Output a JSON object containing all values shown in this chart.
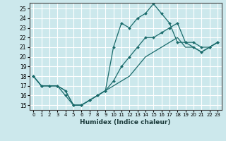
{
  "xlabel": "Humidex (Indice chaleur)",
  "background_color": "#cce8ec",
  "grid_color": "#ffffff",
  "line_color": "#1a6b6b",
  "xlim": [
    -0.5,
    23.5
  ],
  "ylim": [
    14.5,
    25.6
  ],
  "yticks": [
    15,
    16,
    17,
    18,
    19,
    20,
    21,
    22,
    23,
    24,
    25
  ],
  "xticks": [
    0,
    1,
    2,
    3,
    4,
    5,
    6,
    7,
    8,
    9,
    10,
    11,
    12,
    13,
    14,
    15,
    16,
    17,
    18,
    19,
    20,
    21,
    22,
    23
  ],
  "series": [
    {
      "x": [
        0,
        1,
        2,
        3,
        4,
        5,
        6,
        7,
        8,
        9,
        10,
        11,
        12,
        13,
        14,
        15,
        16,
        17,
        18,
        19,
        20,
        21,
        22,
        23
      ],
      "y": [
        18,
        17,
        17,
        17,
        16,
        15,
        15,
        15.5,
        16,
        16.5,
        21,
        23.5,
        23,
        24,
        24.5,
        25.5,
        24.5,
        23.5,
        21.5,
        21.5,
        21,
        20.5,
        21,
        21.5
      ]
    },
    {
      "x": [
        0,
        1,
        2,
        3,
        4,
        5,
        6,
        7,
        8,
        9,
        10,
        11,
        12,
        13,
        14,
        15,
        16,
        17,
        18,
        19,
        20,
        21,
        22,
        23
      ],
      "y": [
        18,
        17,
        17,
        17,
        16.5,
        15,
        15,
        15.5,
        16,
        16.5,
        17.5,
        19,
        20,
        21,
        22,
        22,
        22.5,
        23,
        23.5,
        21.5,
        21.5,
        21,
        21,
        21.5
      ]
    },
    {
      "x": [
        0,
        1,
        2,
        3,
        4,
        5,
        6,
        7,
        8,
        9,
        10,
        11,
        12,
        13,
        14,
        15,
        16,
        17,
        18,
        19,
        20,
        21,
        22,
        23
      ],
      "y": [
        18,
        17,
        17,
        17,
        16.5,
        15,
        15,
        15.5,
        16,
        16.5,
        17,
        17.5,
        18,
        19,
        20,
        20.5,
        21,
        21.5,
        22,
        21,
        21,
        20.5,
        21,
        21.5
      ]
    }
  ]
}
